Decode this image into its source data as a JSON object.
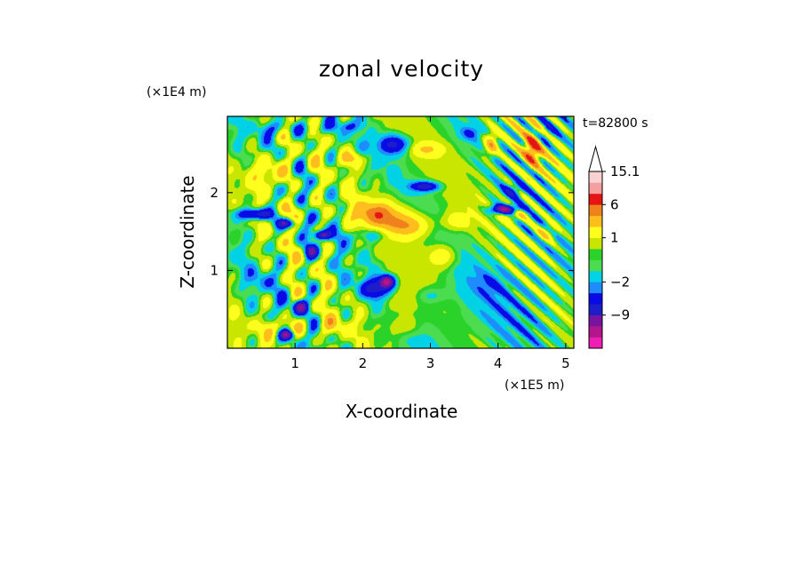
{
  "chart_data": {
    "type": "heatmap",
    "title": "zonal velocity",
    "time_label": "t=82800 s",
    "xlabel": "X-coordinate",
    "ylabel": "Z-coordinate",
    "x_units": "(×1E5 m)",
    "y_units": "(×1E4 m)",
    "xlim": [
      0,
      5.12
    ],
    "ylim": [
      0,
      2.98
    ],
    "x_ticks": [
      "1",
      "2",
      "3",
      "4",
      "5"
    ],
    "y_ticks": [
      "1",
      "2"
    ],
    "x_tick_values": [
      1,
      2,
      3,
      4,
      5
    ],
    "y_tick_values": [
      1,
      2
    ],
    "grid": false,
    "colorbar": {
      "position": "right",
      "extend_top": true,
      "levels": [
        -15,
        -12,
        -9,
        -6,
        -4,
        -2,
        -1,
        0,
        0.5,
        1,
        2,
        4,
        6,
        8,
        12,
        15.1
      ],
      "colors": [
        "#f01eb4",
        "#b4148c",
        "#7814a0",
        "#1e1ec8",
        "#0a0ae6",
        "#1e8cff",
        "#00d2e6",
        "#4bdc50",
        "#2ad22a",
        "#c8e600",
        "#ffff1e",
        "#ffbe1e",
        "#f0821e",
        "#e61414",
        "#f5a0a0",
        "#fad2d2"
      ],
      "labels": [
        {
          "value": 15.1,
          "text": "15.1"
        },
        {
          "value": 6,
          "text": "6"
        },
        {
          "value": 1,
          "text": "1"
        },
        {
          "value": -2,
          "text": "−2"
        },
        {
          "value": -9,
          "text": "−9"
        }
      ]
    }
  }
}
